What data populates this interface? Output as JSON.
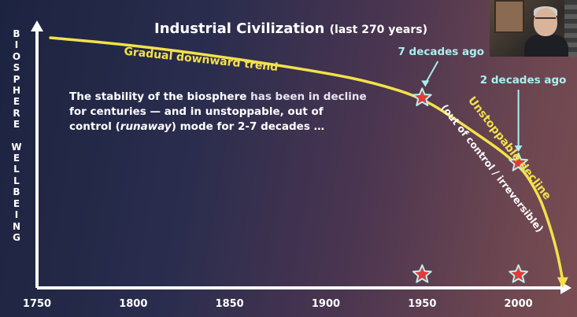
{
  "slide": {
    "title": "Industrial Civilization",
    "title_sub": "(last 270 years)",
    "body_lines": [
      {
        "pre": "The stability of the biosphere ",
        "dim": "has been in decline"
      },
      {
        "text": "for centuries — and in unstoppable, out of"
      },
      {
        "pre": "control (",
        "em": "runaway",
        "post": ") mode for 2-7 decades …"
      }
    ]
  },
  "colors": {
    "curve": "#f2e24a",
    "axis": "#ffffff",
    "callout": "#a8f0f0",
    "star_fill": "#e03a3a",
    "star_stroke": "#b8f0f0"
  },
  "chart_data": {
    "type": "line",
    "ylabel": "BIOSPHERE WELLBEING",
    "xlabel": "",
    "xlim": [
      1750,
      2025
    ],
    "ylim": [
      0,
      1
    ],
    "x_ticks": [
      1750,
      1800,
      1850,
      1900,
      1950,
      2000
    ],
    "y_ticks_shown": false,
    "series": [
      {
        "x": [
          1757,
          1800,
          1850,
          1900,
          1925,
          1950,
          1970,
          2000,
          2010,
          2015,
          2020,
          2023
        ],
        "y": [
          1.0,
          0.97,
          0.92,
          0.86,
          0.82,
          0.76,
          0.66,
          0.5,
          0.38,
          0.28,
          0.15,
          0.03
        ]
      }
    ],
    "annotations": [
      {
        "text": "Gradual downward trend",
        "x": 1835,
        "y": 0.9,
        "color": "#f2e24a"
      },
      {
        "text": "Unstoppable decline",
        "x": 1994,
        "y": 0.55,
        "color": "#f2e24a",
        "rotation": 52
      },
      {
        "text": "(out of control / irreversible)",
        "x": 1985,
        "y": 0.47,
        "color": "#ffffff",
        "rotation": 52
      }
    ],
    "callouts": [
      {
        "text": "7 decades ago",
        "x": 1950,
        "y": 0.76
      },
      {
        "text": "2 decades ago",
        "x": 2000,
        "y": 0.5
      }
    ],
    "axis_stars": [
      1950,
      2000
    ]
  },
  "video": {
    "subject": "presenter webcam"
  }
}
